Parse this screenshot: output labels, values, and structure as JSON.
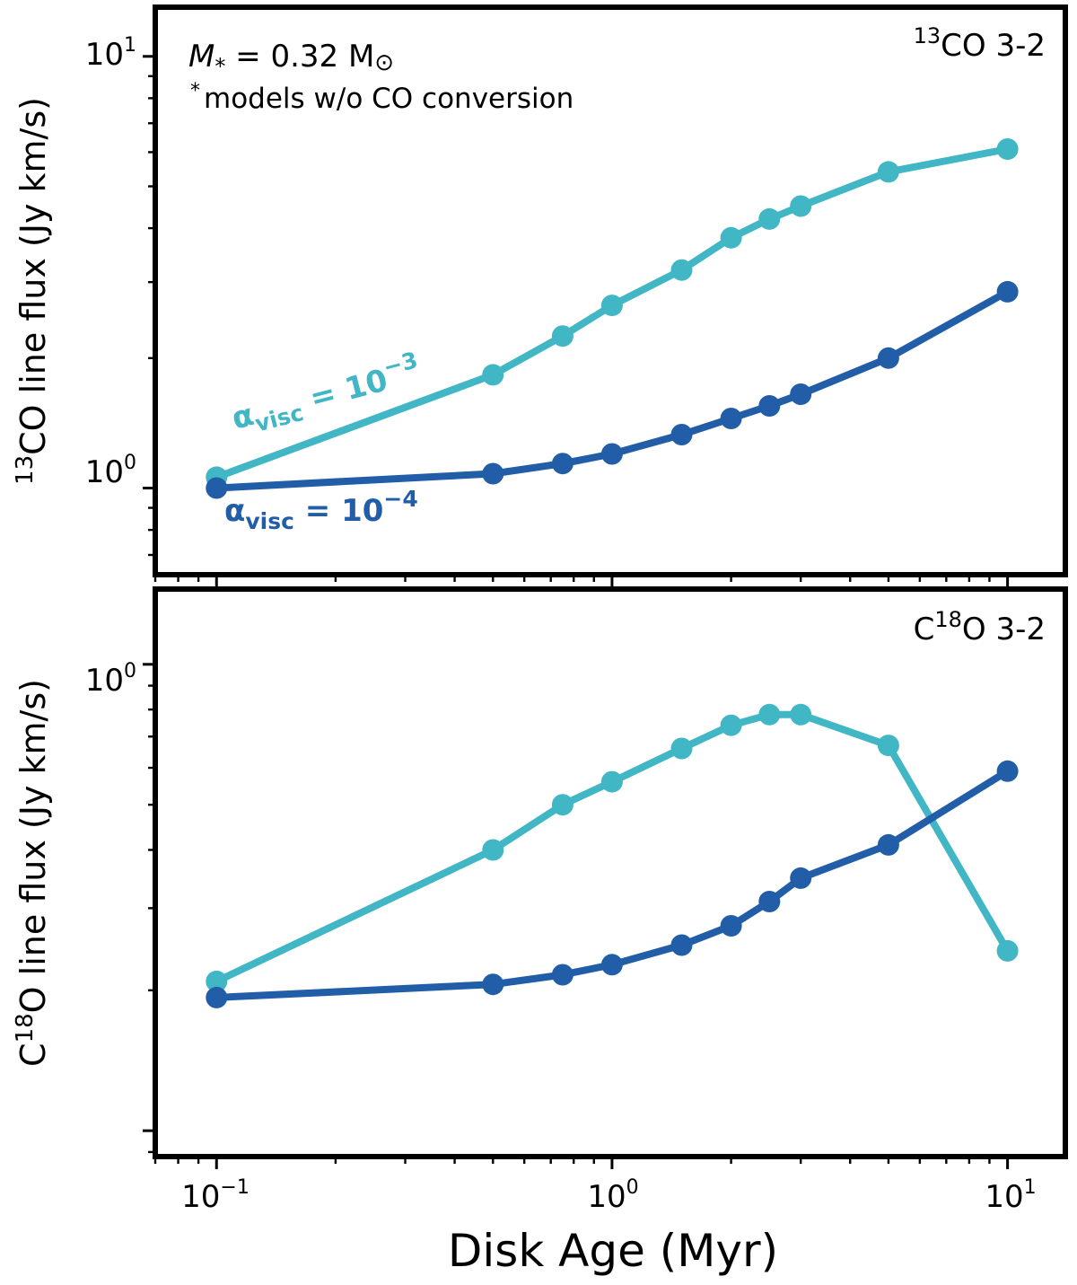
{
  "chart_data": [
    {
      "type": "line",
      "panel_label_iso": "13",
      "panel_label_rest": "CO 3-2",
      "ylabel_sup": "13",
      "ylabel_rest": "CO line flux (Jy km/s)",
      "xscale": "log",
      "yscale": "log",
      "xlim": [
        0.07,
        14
      ],
      "ylim": [
        0.63,
        13
      ],
      "star_mass_annotation": {
        "symbol": "M",
        "subscript": "*",
        "rest": " = 0.32 M",
        "sun_symbol": "⊙"
      },
      "note_annotation": {
        "marker": "*",
        "text": "models w/o CO conversion"
      },
      "x": [
        0.1,
        0.5,
        0.75,
        1.0,
        1.5,
        2.0,
        2.5,
        3.0,
        5.0,
        10.0
      ],
      "series": [
        {
          "name": "alpha_visc = 10^-3",
          "label_base": "α",
          "label_sub": "visc",
          "label_eq": " = 10",
          "label_exp": "−3",
          "color": "#41b6c4",
          "values": [
            1.06,
            1.83,
            2.25,
            2.65,
            3.2,
            3.8,
            4.2,
            4.5,
            5.4,
            6.1
          ]
        },
        {
          "name": "alpha_visc = 10^-4",
          "label_base": "α",
          "label_sub": "visc",
          "label_eq": " = 10",
          "label_exp": "−4",
          "color": "#225ea8",
          "values": [
            1.0,
            1.08,
            1.14,
            1.2,
            1.33,
            1.45,
            1.55,
            1.65,
            2.0,
            2.85
          ]
        }
      ],
      "y_major_ticks": [
        {
          "base": "10",
          "exp": "0",
          "value": 1
        },
        {
          "base": "10",
          "exp": "1",
          "value": 10
        }
      ]
    },
    {
      "type": "line",
      "panel_label_pre": "C",
      "panel_label_iso": "18",
      "panel_label_rest": "O 3-2",
      "ylabel_pre": "C",
      "ylabel_sup": "18",
      "ylabel_rest": "O line flux (Jy km/s)",
      "xlabel": "Disk Age (Myr)",
      "xscale": "log",
      "yscale": "log",
      "xlim": [
        0.07,
        14
      ],
      "ylim": [
        0.088,
        1.45
      ],
      "x": [
        0.1,
        0.5,
        0.75,
        1.0,
        1.5,
        2.0,
        2.5,
        3.0,
        5.0,
        10.0
      ],
      "series": [
        {
          "name": "alpha_visc = 10^-3",
          "color": "#41b6c4",
          "values": [
            0.209,
            0.4,
            0.5,
            0.56,
            0.66,
            0.74,
            0.78,
            0.78,
            0.67,
            0.243
          ]
        },
        {
          "name": "alpha_visc = 10^-4",
          "color": "#225ea8",
          "values": [
            0.193,
            0.206,
            0.216,
            0.227,
            0.25,
            0.275,
            0.31,
            0.348,
            0.41,
            0.59
          ]
        }
      ],
      "y_major_ticks": [
        {
          "base": "10",
          "exp": "0",
          "value": 1
        }
      ],
      "x_major_ticks": [
        {
          "base": "10",
          "exp": "−1",
          "value": 0.1
        },
        {
          "base": "10",
          "exp": "0",
          "value": 1
        },
        {
          "base": "10",
          "exp": "1",
          "value": 10
        }
      ]
    }
  ]
}
